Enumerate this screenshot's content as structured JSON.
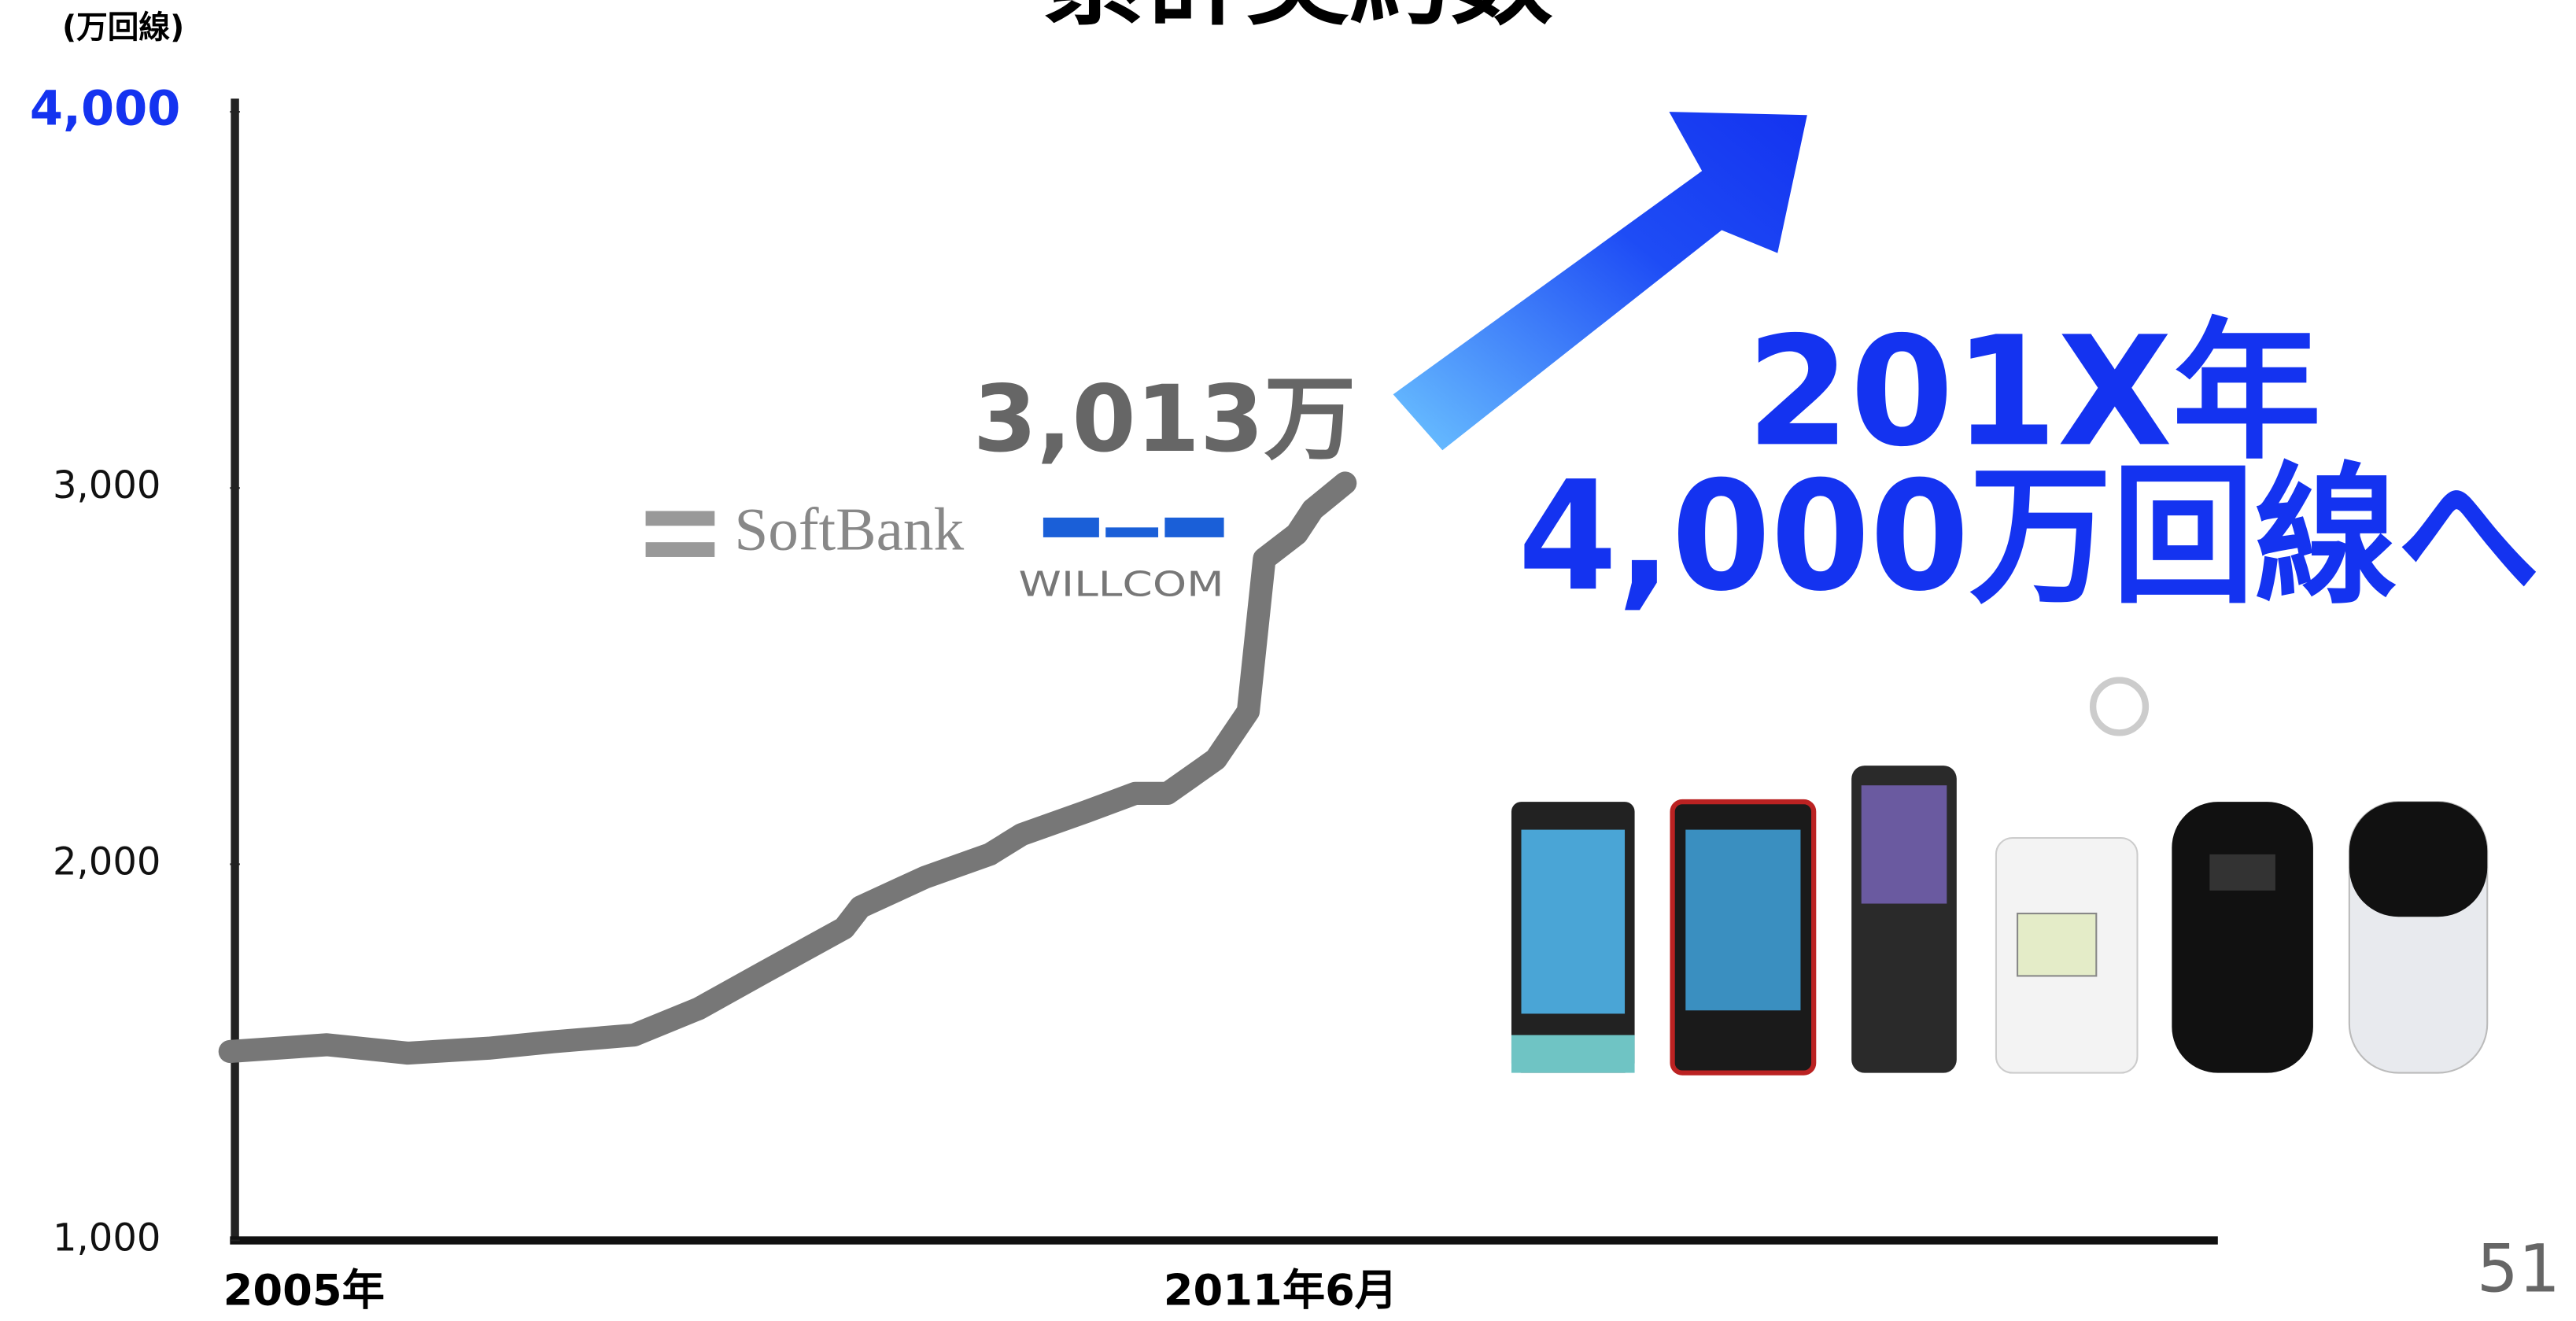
{
  "chart_data": {
    "type": "line",
    "title": "累計契約数",
    "y_label": "(万回線)",
    "x": [
      2005.0,
      2005.6,
      2006.1,
      2006.6,
      2007.0,
      2007.5,
      2007.9,
      2008.3,
      2008.8,
      2008.9,
      2009.3,
      2009.7,
      2009.9,
      2010.3,
      2010.6,
      2010.8,
      2011.1,
      2011.3,
      2011.4,
      2011.6,
      2011.7,
      2011.9
    ],
    "values": [
      1502,
      1520,
      1498,
      1511,
      1528,
      1546,
      1616,
      1712,
      1830,
      1886,
      1965,
      2026,
      2079,
      2140,
      2188,
      2188,
      2279,
      2406,
      2812,
      2878,
      2943,
      3013
    ],
    "value_labels": [
      null,
      null,
      null,
      null,
      null,
      null,
      null,
      null,
      null,
      null,
      null,
      null,
      null,
      null,
      null,
      null,
      null,
      null,
      null,
      null,
      null,
      "3,013万"
    ],
    "color": "#777777",
    "accent_color": "#1433f0",
    "xlim": [
      2005,
      2017.3
    ],
    "xticks": [
      {
        "value": 2005,
        "label": "2005年"
      },
      {
        "value": 2011.5,
        "label": "2011年6月"
      }
    ],
    "ylim": [
      1000,
      4000
    ],
    "yticks": [
      {
        "value": 1000,
        "label": "1,000"
      },
      {
        "value": 2000,
        "label": "2,000"
      },
      {
        "value": 3000,
        "label": "3,000"
      },
      {
        "value": 4000,
        "label": "4,000"
      }
    ],
    "grid": false,
    "annotations": [
      "201X年",
      "4,000万回線へ"
    ],
    "logos": [
      "SoftBank",
      "WILLCOM"
    ],
    "page_number": "51"
  }
}
